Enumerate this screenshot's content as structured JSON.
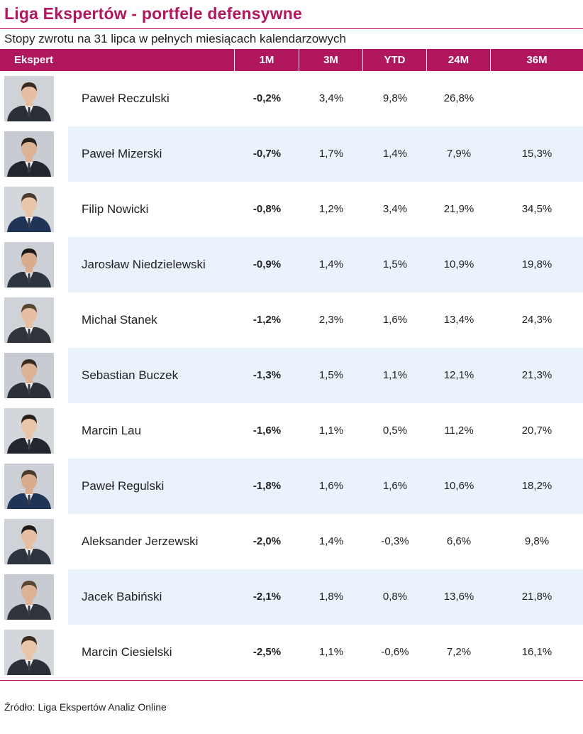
{
  "title": "Liga Ekspertów - portfele defensywne",
  "subtitle": "Stopy zwrotu na 31 lipca w pełnych miesiącach kalendarzowych",
  "source": "Źródło: Liga Ekspertów Analiz Online",
  "colors": {
    "accent": "#b0175e",
    "band": "#eaf3fc"
  },
  "chart_data": {
    "type": "table",
    "columns": [
      "Ekspert",
      "1M",
      "3M",
      "YTD",
      "24M",
      "36M"
    ],
    "rows": [
      {
        "name": "Paweł Reczulski",
        "m1": "-0,2%",
        "m3": "3,4%",
        "ytd": "9,8%",
        "m24": "26,8%",
        "m36": ""
      },
      {
        "name": "Paweł Mizerski",
        "m1": "-0,7%",
        "m3": "1,7%",
        "ytd": "1,4%",
        "m24": "7,9%",
        "m36": "15,3%"
      },
      {
        "name": "Filip Nowicki",
        "m1": "-0,8%",
        "m3": "1,2%",
        "ytd": "3,4%",
        "m24": "21,9%",
        "m36": "34,5%"
      },
      {
        "name": "Jarosław Niedzielewski",
        "m1": "-0,9%",
        "m3": "1,4%",
        "ytd": "1,5%",
        "m24": "10,9%",
        "m36": "19,8%"
      },
      {
        "name": "Michał Stanek",
        "m1": "-1,2%",
        "m3": "2,3%",
        "ytd": "1,6%",
        "m24": "13,4%",
        "m36": "24,3%"
      },
      {
        "name": "Sebastian Buczek",
        "m1": "-1,3%",
        "m3": "1,5%",
        "ytd": "1,1%",
        "m24": "12,1%",
        "m36": "21,3%"
      },
      {
        "name": "Marcin Lau",
        "m1": "-1,6%",
        "m3": "1,1%",
        "ytd": "0,5%",
        "m24": "11,2%",
        "m36": "20,7%"
      },
      {
        "name": "Paweł Regulski",
        "m1": "-1,8%",
        "m3": "1,6%",
        "ytd": "1,6%",
        "m24": "10,6%",
        "m36": "18,2%"
      },
      {
        "name": "Aleksander Jerzewski",
        "m1": "-2,0%",
        "m3": "1,4%",
        "ytd": "-0,3%",
        "m24": "6,6%",
        "m36": "9,8%"
      },
      {
        "name": "Jacek Babiński",
        "m1": "-2,1%",
        "m3": "1,8%",
        "ytd": "0,8%",
        "m24": "13,6%",
        "m36": "21,8%"
      },
      {
        "name": "Marcin Ciesielski",
        "m1": "-2,5%",
        "m3": "1,1%",
        "ytd": "-0,6%",
        "m24": "7,2%",
        "m36": "16,1%"
      }
    ]
  }
}
